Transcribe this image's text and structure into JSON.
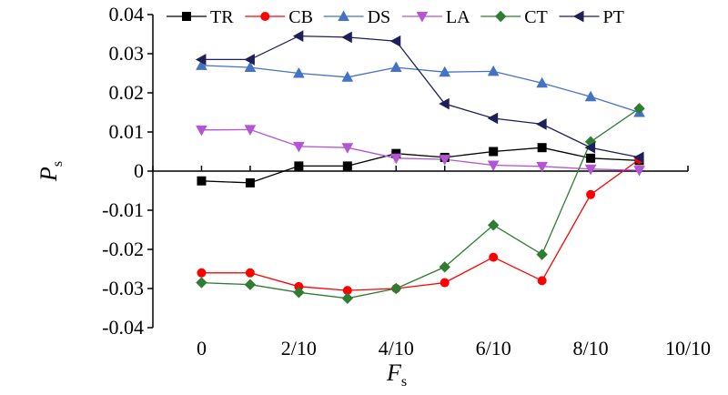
{
  "chart_data": {
    "type": "line",
    "x": [
      0,
      1,
      2,
      3,
      4,
      5,
      6,
      7,
      8,
      9
    ],
    "xticks": [
      0,
      2,
      4,
      6,
      8,
      10
    ],
    "xtick_labels": [
      "0",
      "2/10",
      "4/10",
      "6/10",
      "8/10",
      "10/10"
    ],
    "xlim": [
      -1,
      10
    ],
    "ylim": [
      -0.04,
      0.04
    ],
    "yticks": [
      -0.04,
      -0.03,
      -0.02,
      -0.01,
      0,
      0.01,
      0.02,
      0.03,
      0.04
    ],
    "ytick_labels": [
      "-0.04",
      "-0.03",
      "-0.02",
      "-0.01",
      "0",
      "0.01",
      "0.02",
      "0.03",
      "0.04"
    ],
    "xlabel": "F",
    "xlabel_sub": "s",
    "ylabel": "P",
    "ylabel_sub": "s",
    "legend_position": "top",
    "grid": false,
    "series": [
      {
        "name": "TR",
        "color": "#000000",
        "marker": "square",
        "values": [
          -0.0025,
          -0.003,
          0.0013,
          0.0013,
          0.0045,
          0.0035,
          0.005,
          0.006,
          0.0033,
          0.0027
        ]
      },
      {
        "name": "CB",
        "color": "#ff0000",
        "marker": "circle",
        "values": [
          -0.026,
          -0.026,
          -0.0295,
          -0.0305,
          -0.03,
          -0.0285,
          -0.022,
          -0.028,
          -0.006,
          0.003
        ]
      },
      {
        "name": "DS",
        "color": "#4472c4",
        "marker": "triangle-up",
        "values": [
          0.027,
          0.0265,
          0.025,
          0.024,
          0.0265,
          0.0253,
          0.0255,
          0.0225,
          0.019,
          0.015
        ]
      },
      {
        "name": "LA",
        "color": "#b455d4",
        "marker": "triangle-down",
        "values": [
          0.0105,
          0.0106,
          0.0063,
          0.006,
          0.0033,
          0.003,
          0.0015,
          0.0012,
          0.0005,
          0.0002
        ]
      },
      {
        "name": "CT",
        "color": "#2e7d32",
        "marker": "diamond",
        "values": [
          -0.0285,
          -0.029,
          -0.031,
          -0.0325,
          -0.03,
          -0.0245,
          -0.0138,
          -0.0213,
          0.0075,
          0.016
        ]
      },
      {
        "name": "PT",
        "color": "#1f1f5a",
        "marker": "triangle-left",
        "values": [
          0.0285,
          0.0285,
          0.0345,
          0.0342,
          0.0332,
          0.0172,
          0.0135,
          0.012,
          0.006,
          0.0035
        ]
      }
    ]
  }
}
